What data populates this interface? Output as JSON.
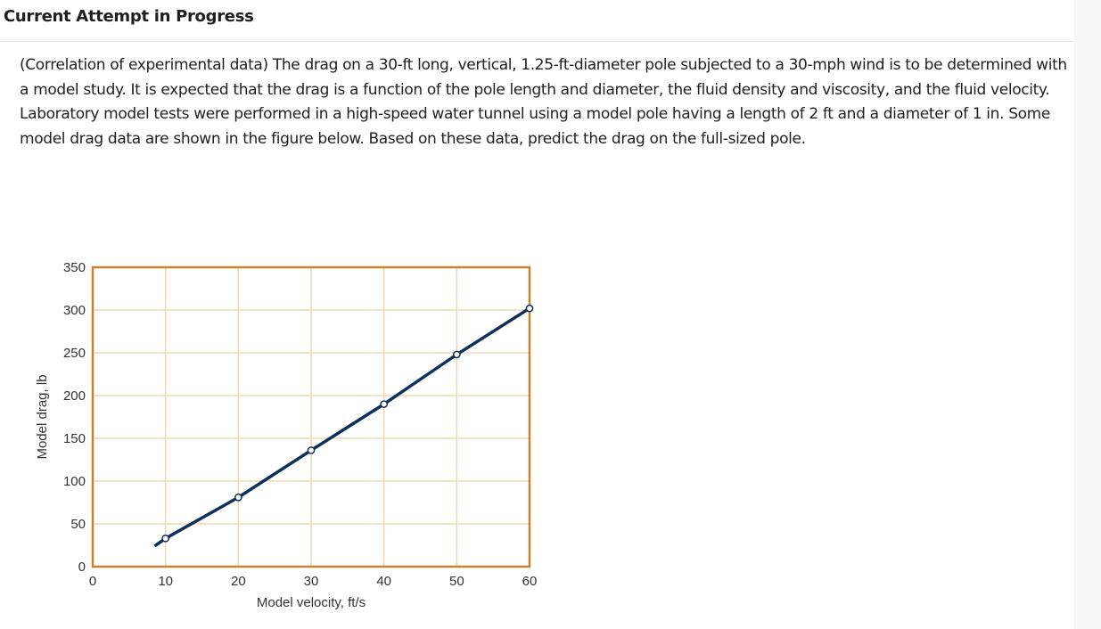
{
  "header": {
    "title": "Current Attempt in Progress"
  },
  "question": {
    "text": "(Correlation of experimental data) The drag on a 30-ft long, vertical, 1.25-ft-diameter pole subjected to a 30-mph wind is to be determined with a model study. It is expected that the drag is a function of the pole length and diameter, the fluid density and viscosity, and the fluid velocity. Laboratory model tests were performed in a high-speed water tunnel using a model pole having a length of 2 ft and a diameter of 1 in. Some model drag data are shown in the figure below. Based on these data, predict the drag on the full-sized pole."
  },
  "chart_data": {
    "type": "line",
    "xlabel": "Model velocity, ft/s",
    "ylabel": "Model drag, lb",
    "xlim": [
      0,
      60
    ],
    "ylim": [
      0,
      350
    ],
    "xticks": [
      0,
      10,
      20,
      30,
      40,
      50,
      60
    ],
    "yticks": [
      0,
      50,
      100,
      150,
      200,
      250,
      300,
      350
    ],
    "grid": true,
    "line_start": [
      8.5,
      24
    ],
    "points": [
      {
        "x": 10,
        "y": 33
      },
      {
        "x": 20,
        "y": 81
      },
      {
        "x": 30,
        "y": 136
      },
      {
        "x": 40,
        "y": 190
      },
      {
        "x": 50,
        "y": 248
      },
      {
        "x": 60,
        "y": 302
      }
    ],
    "colors": {
      "frame": "#c8832f",
      "grid": "#f3d6b0",
      "line": "#0f2f5c",
      "marker_fill": "#ffffff"
    }
  }
}
